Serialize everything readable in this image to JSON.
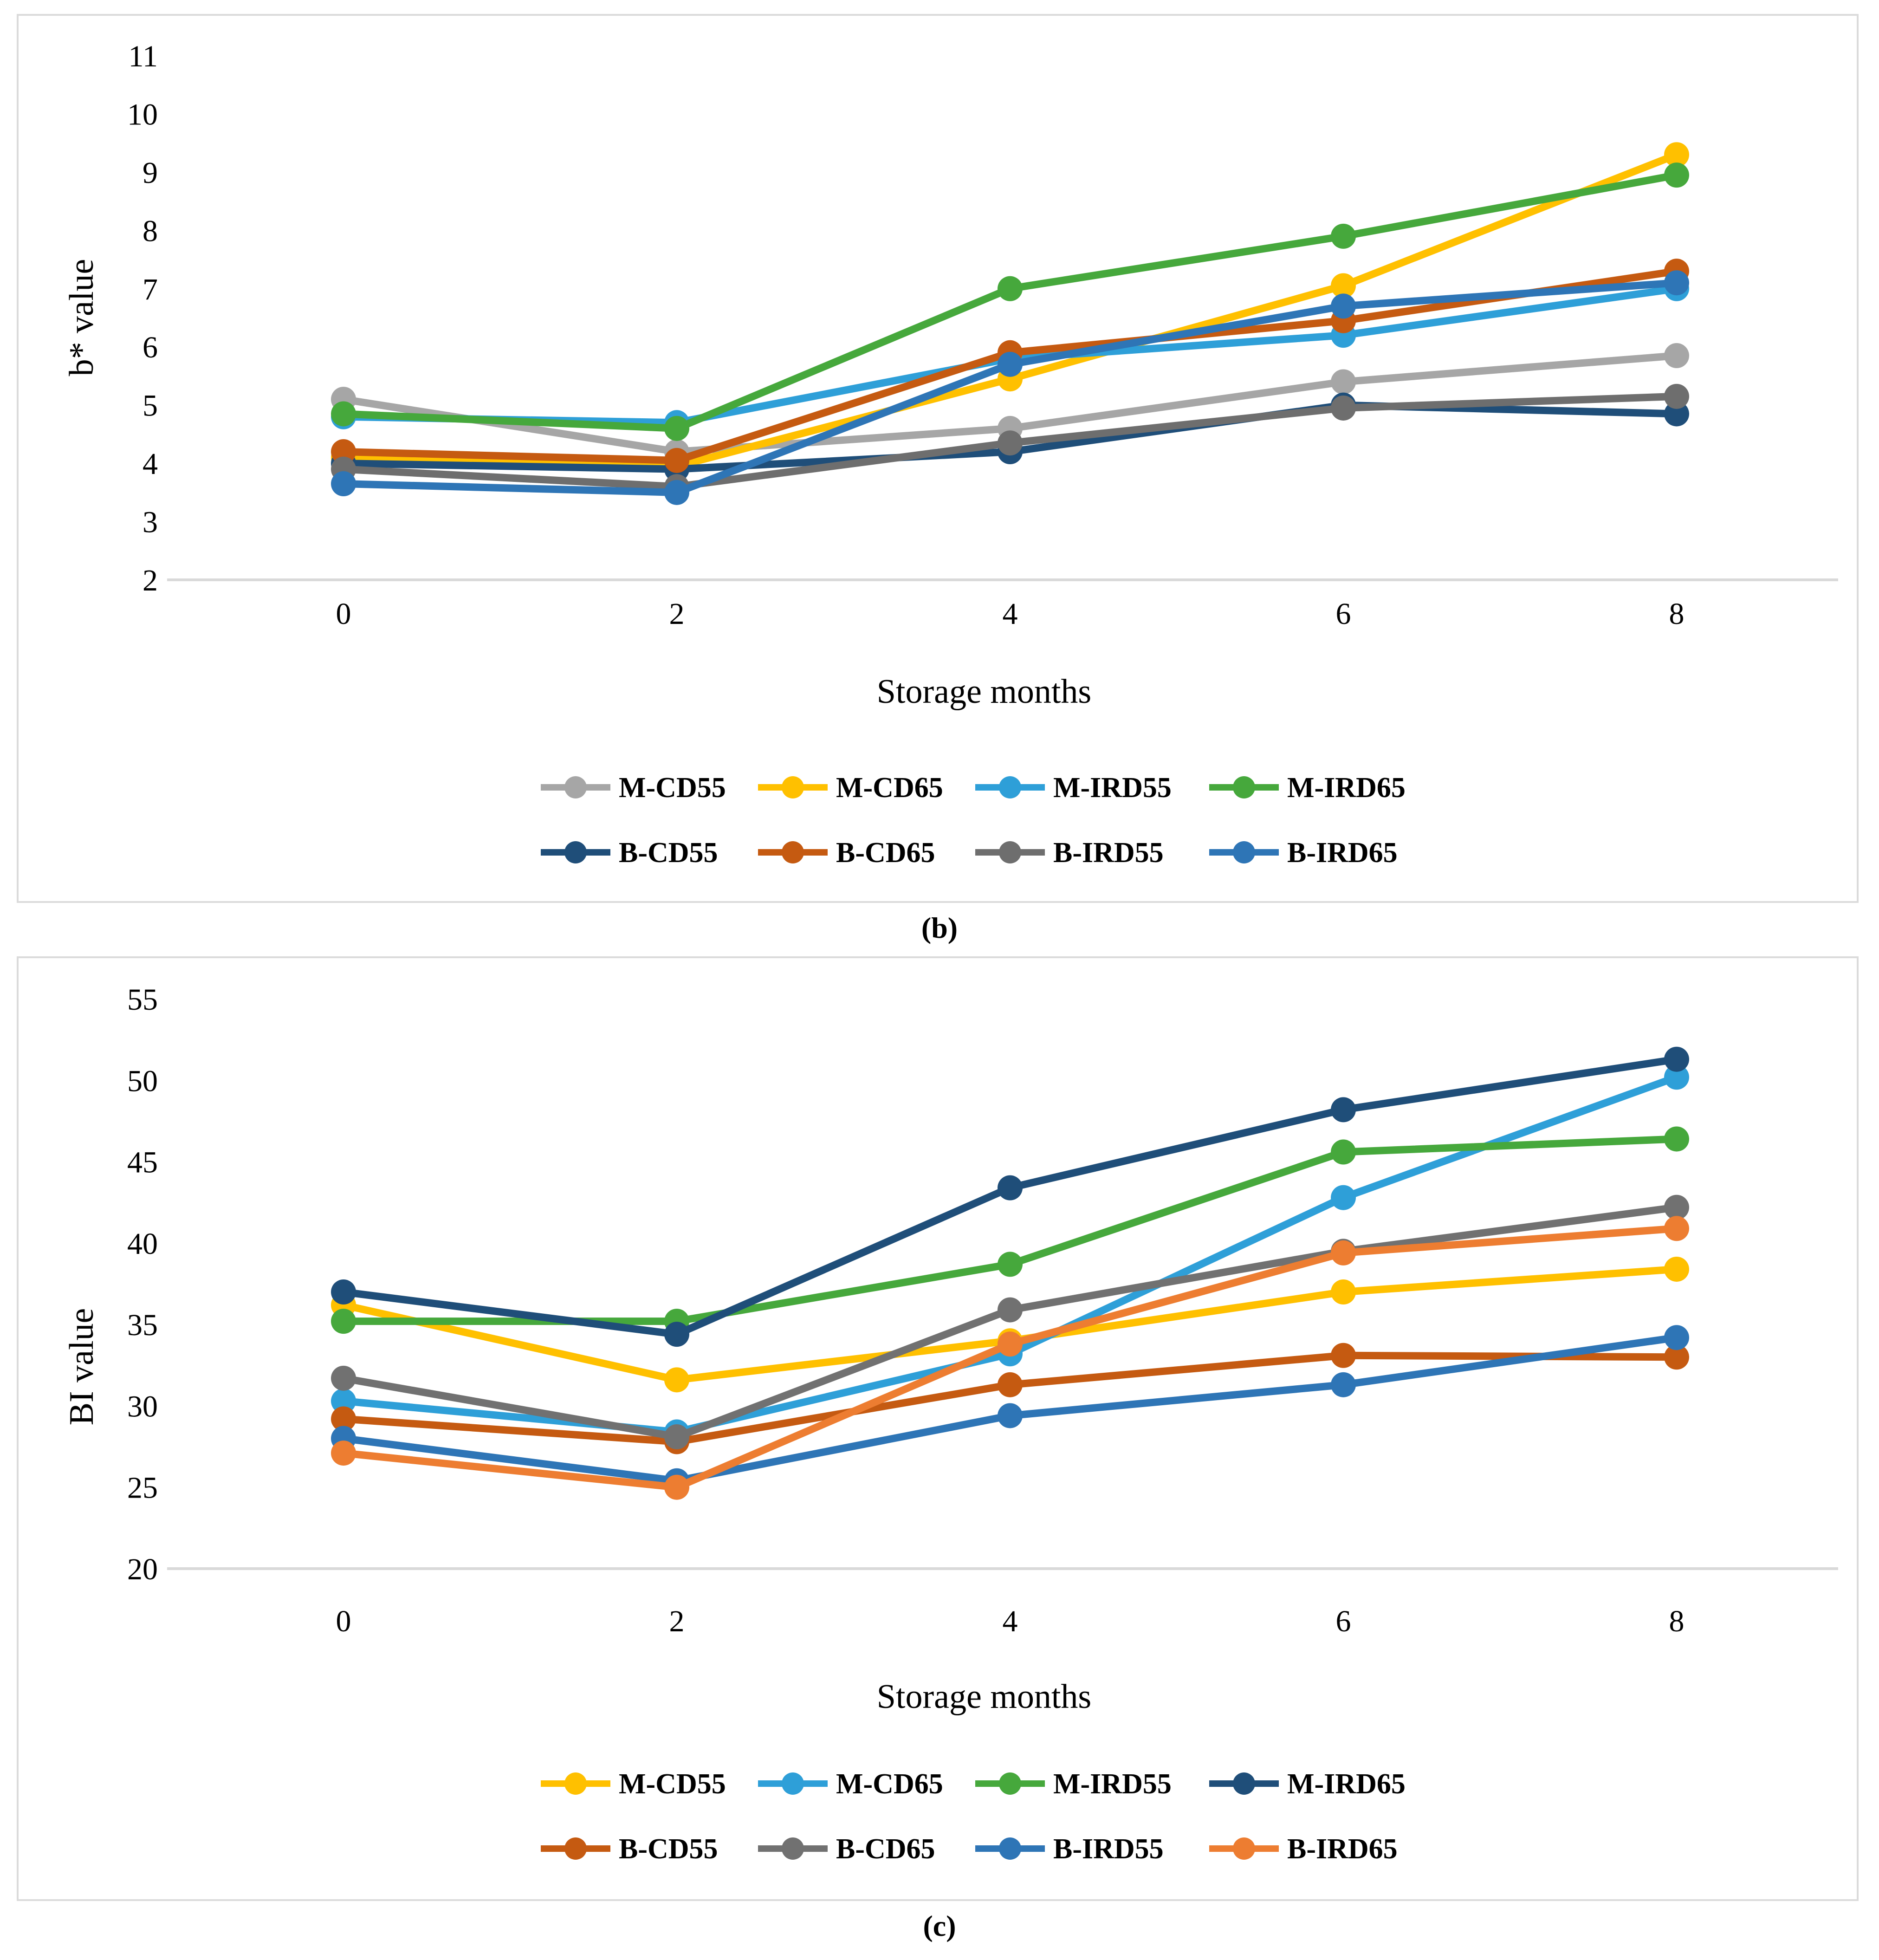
{
  "figure": {
    "caption_b": "(b)",
    "caption_c": "(c)"
  },
  "chart_data": [
    {
      "id": "b",
      "type": "line",
      "title": "",
      "xlabel": "Storage months",
      "ylabel": "b* value",
      "x": [
        0,
        2,
        4,
        6,
        8
      ],
      "xticks": [
        "0",
        "2",
        "4",
        "6",
        "8"
      ],
      "yticks": [
        "2",
        "3",
        "4",
        "5",
        "6",
        "7",
        "8",
        "9",
        "10",
        "11"
      ],
      "ylim": [
        2,
        11
      ],
      "grid": false,
      "legend_position": "bottom",
      "axis_line_color": "#d9d9d9",
      "marker": "circle",
      "legend_rows": [
        [
          "M-CD55",
          "M-CD65",
          "M-IRD55",
          "M-IRD65"
        ],
        [
          "B-CD55",
          "B-CD65",
          "B-IRD55",
          "B-IRD65"
        ]
      ],
      "series": [
        {
          "name": "M-CD55",
          "color": "#A6A6A6",
          "values": [
            5.1,
            4.2,
            4.6,
            5.4,
            5.85
          ]
        },
        {
          "name": "M-CD65",
          "color": "#FFC000",
          "values": [
            4.1,
            3.95,
            5.45,
            7.05,
            9.3
          ]
        },
        {
          "name": "M-IRD55",
          "color": "#2E9FD8",
          "values": [
            4.8,
            4.7,
            5.8,
            6.2,
            7.0
          ]
        },
        {
          "name": "M-IRD65",
          "color": "#46A83C",
          "values": [
            4.85,
            4.6,
            7.0,
            7.9,
            8.95
          ]
        },
        {
          "name": "B-CD55",
          "color": "#1F4E79",
          "values": [
            4.0,
            3.9,
            4.2,
            5.0,
            4.85
          ]
        },
        {
          "name": "B-CD65",
          "color": "#C55A11",
          "values": [
            4.2,
            4.05,
            5.9,
            6.45,
            7.3
          ]
        },
        {
          "name": "B-IRD55",
          "color": "#6E6E6E",
          "values": [
            3.9,
            3.6,
            4.35,
            4.95,
            5.15
          ]
        },
        {
          "name": "B-IRD65",
          "color": "#2E75B6",
          "values": [
            3.65,
            3.5,
            5.7,
            6.7,
            7.1
          ]
        }
      ]
    },
    {
      "id": "c",
      "type": "line",
      "title": "",
      "xlabel": "Storage months",
      "ylabel": "BI value",
      "x": [
        0,
        2,
        4,
        6,
        8
      ],
      "xticks": [
        "0",
        "2",
        "4",
        "6",
        "8"
      ],
      "yticks": [
        "20",
        "25",
        "30",
        "35",
        "40",
        "45",
        "50",
        "55"
      ],
      "ylim": [
        20,
        55
      ],
      "grid": false,
      "legend_position": "bottom",
      "axis_line_color": "#d9d9d9",
      "marker": "circle",
      "legend_rows": [
        [
          "M-CD55",
          "M-CD65",
          "M-IRD55",
          "M-IRD65"
        ],
        [
          "B-CD55",
          "B-CD65",
          "B-IRD55",
          "B-IRD65"
        ]
      ],
      "series": [
        {
          "name": "M-CD55",
          "color": "#FFC000",
          "values": [
            36.2,
            31.6,
            34.0,
            37.0,
            38.4
          ]
        },
        {
          "name": "M-CD65",
          "color": "#2E9FD8",
          "values": [
            30.3,
            28.4,
            33.2,
            42.8,
            50.2
          ]
        },
        {
          "name": "M-IRD55",
          "color": "#46A83C",
          "values": [
            35.2,
            35.2,
            38.7,
            45.6,
            46.4
          ]
        },
        {
          "name": "M-IRD65",
          "color": "#1F4E79",
          "values": [
            37.0,
            34.4,
            43.4,
            48.2,
            51.3
          ]
        },
        {
          "name": "B-CD55",
          "color": "#C55A11",
          "values": [
            29.2,
            27.8,
            31.3,
            33.1,
            33.0
          ]
        },
        {
          "name": "B-CD65",
          "color": "#717171",
          "values": [
            31.7,
            28.1,
            35.9,
            39.5,
            42.2
          ]
        },
        {
          "name": "B-IRD55",
          "color": "#2E75B6",
          "values": [
            28.0,
            25.4,
            29.4,
            31.3,
            34.2
          ]
        },
        {
          "name": "B-IRD65",
          "color": "#ED7D31",
          "values": [
            27.1,
            25.0,
            33.8,
            39.4,
            40.9
          ]
        }
      ]
    }
  ]
}
